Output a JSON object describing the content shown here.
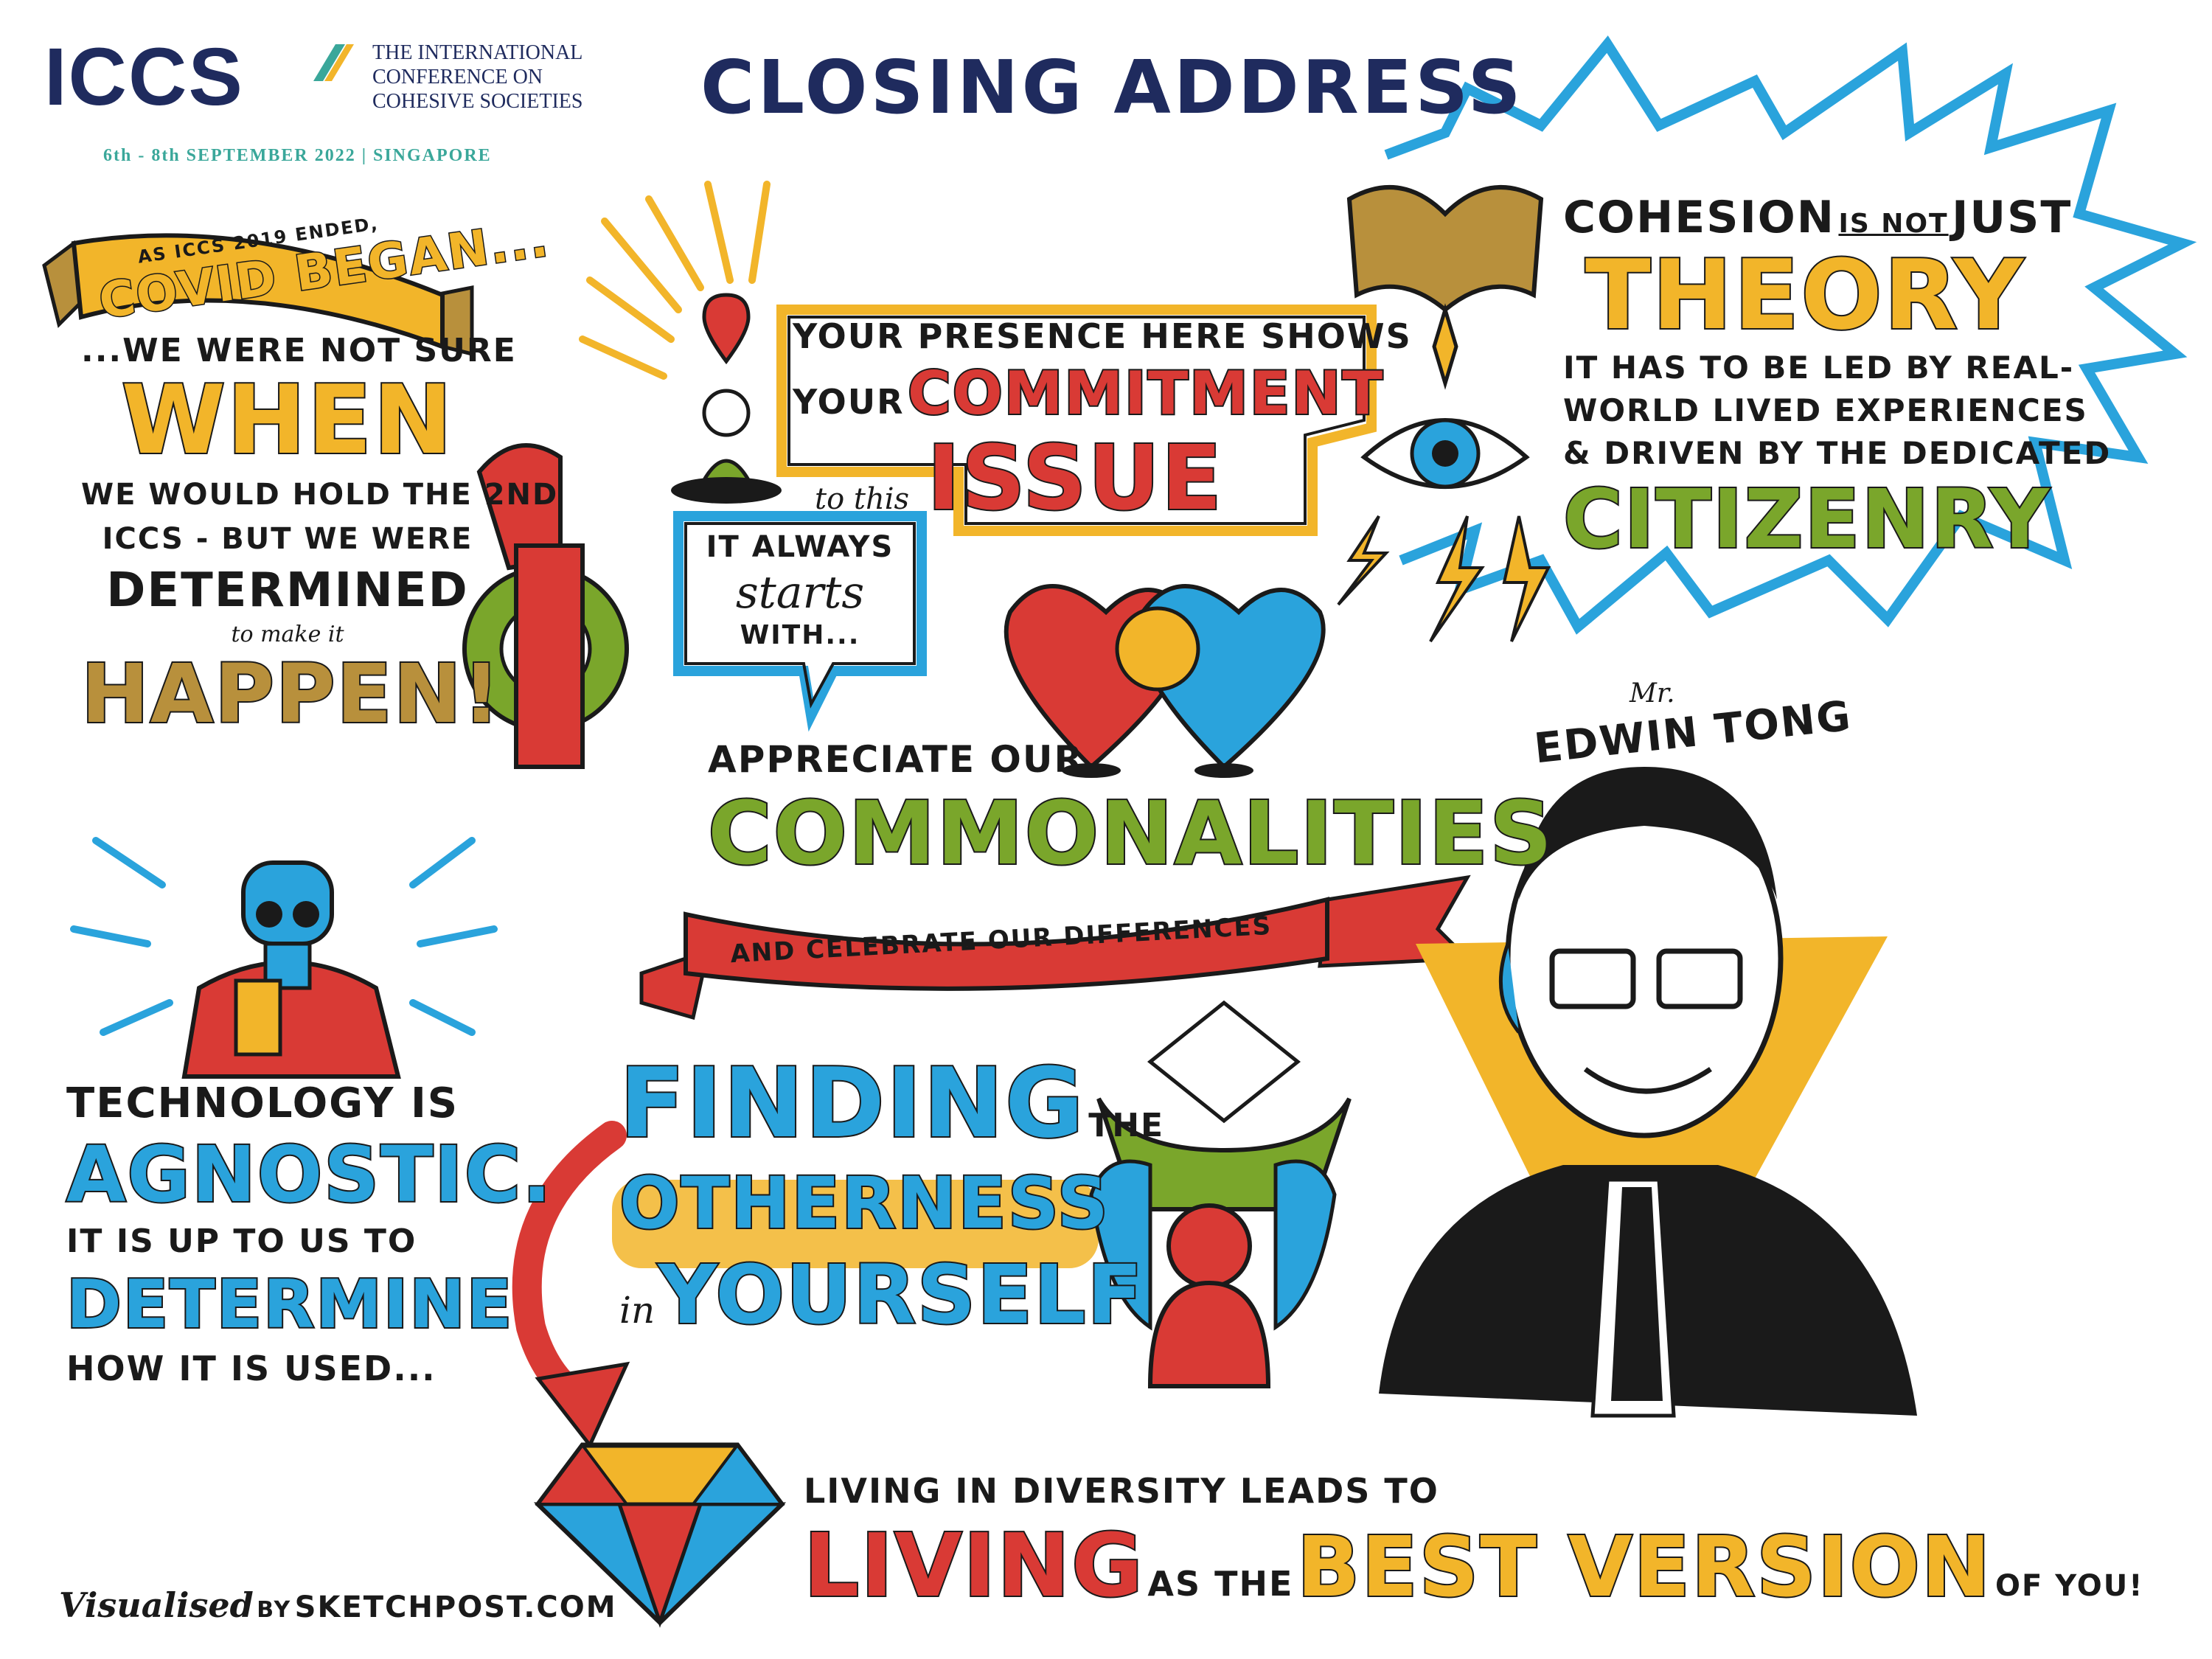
{
  "header": {
    "logo_text": "ICCS",
    "conference_line1": "THE INTERNATIONAL",
    "conference_line2": "CONFERENCE ON",
    "conference_line3": "COHESIVE SOCIETIES",
    "dates": "6th - 8th SEPTEMBER 2022 | SINGAPORE",
    "title": "CLOSING ADDRESS"
  },
  "covid_block": {
    "banner_small": "AS ICCS 2019 ENDED,",
    "banner_big": "COVID BEGAN...",
    "line1": "...WE WERE NOT SURE",
    "when": "WHEN",
    "line2": "WE WOULD HOLD the 2ND",
    "line3": "ICCS - BUT we WERE",
    "determined": "DETERMINED",
    "line4": "to make it",
    "happen": "HAPPEN!"
  },
  "presence_block": {
    "line1": "YOUR PRESENCE HERE SHOWS",
    "your": "YOUR",
    "commitment": "COMMITMENT",
    "to_this": "to this",
    "issue": "ISSUE"
  },
  "cohesion_block": {
    "line1a": "COHESION",
    "is_not": "IS NOT",
    "just": "JUST",
    "theory": "THEORY",
    "line2": "IT HAS TO BE LED by REAL-",
    "line3": "WORLD LIVED EXPERIENCES",
    "line4": "& DRIVEN by the DEDICATED",
    "citizenry": "CITIZENRY"
  },
  "starts_bubble": {
    "line1": "IT ALWAYS",
    "line2": "starts",
    "line3": "WITH..."
  },
  "commonalities_block": {
    "appreciate": "APPRECIATE OUR",
    "commonalities": "COMMONALITIES",
    "ribbon": "AND CELEBRATE our DIFFERENCES"
  },
  "speaker": {
    "mr": "Mr.",
    "name": "EDWIN TONG"
  },
  "technology_block": {
    "line1": "TECHNOLOGY IS",
    "agnostic": "AGNOSTIC.",
    "line2": "IT IS up to us to",
    "determine": "DETERMINE",
    "line3": "HOW IT IS USED..."
  },
  "finding_block": {
    "finding": "FINDING",
    "the": "THE",
    "otherness": "OTHERNESS",
    "in": "in",
    "yourself": "YOURSELF"
  },
  "diversity_block": {
    "line1": "LIVING in DIVERSITY LEADS to",
    "living": "LIVING",
    "as_the": "AS THE",
    "best_version": "BEST VERSION",
    "of_you": "OF YOU!"
  },
  "credit": {
    "visualised": "Visualised",
    "by": "BY",
    "studio": "SKETCHPOST.COM"
  },
  "colors": {
    "navy": "#1f2b5e",
    "teal": "#3aa79a",
    "yellow": "#f2b52a",
    "red": "#d93a35",
    "blue": "#2aa3dc",
    "green": "#7aa62b",
    "gold": "#b8903c",
    "ink": "#1a1a1a"
  }
}
